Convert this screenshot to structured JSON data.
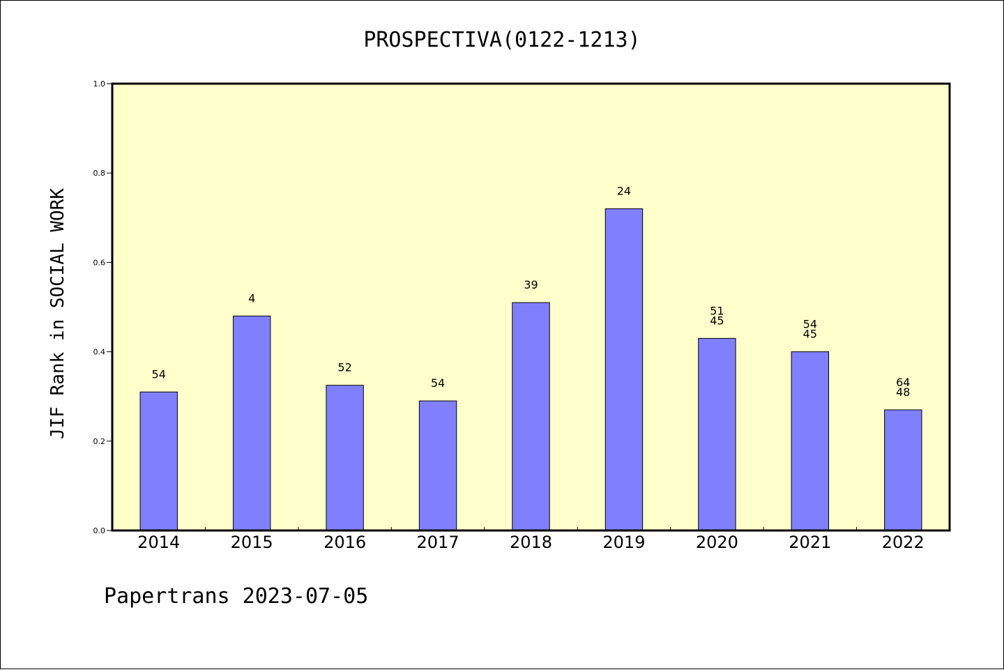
{
  "chart_data": {
    "type": "bar",
    "title": "PROSPECTIVA(0122-1213)",
    "ylabel": "JIF Rank in SOCIAL WORK",
    "xlabel": "",
    "ylim": [
      0,
      1.0
    ],
    "yticks": [
      "0.0",
      "0.2",
      "0.4",
      "0.6",
      "0.8",
      "1.0"
    ],
    "categories": [
      "2014",
      "2015",
      "2016",
      "2017",
      "2018",
      "2019",
      "2020",
      "2021",
      "2022"
    ],
    "values": [
      0.31,
      0.48,
      0.325,
      0.29,
      0.51,
      0.72,
      0.43,
      0.4,
      0.27
    ],
    "labels": [
      [
        "54"
      ],
      [
        "4"
      ],
      [
        "52"
      ],
      [
        "54"
      ],
      [
        "39"
      ],
      [
        "24"
      ],
      [
        "51",
        "45"
      ],
      [
        "54",
        "45"
      ],
      [
        "64",
        "48"
      ]
    ],
    "grid": false,
    "colors": {
      "bar_fill": "#8080ff",
      "plot_background": "#ffffcc",
      "axis": "#000000"
    }
  },
  "footer": "Papertrans 2023-07-05"
}
